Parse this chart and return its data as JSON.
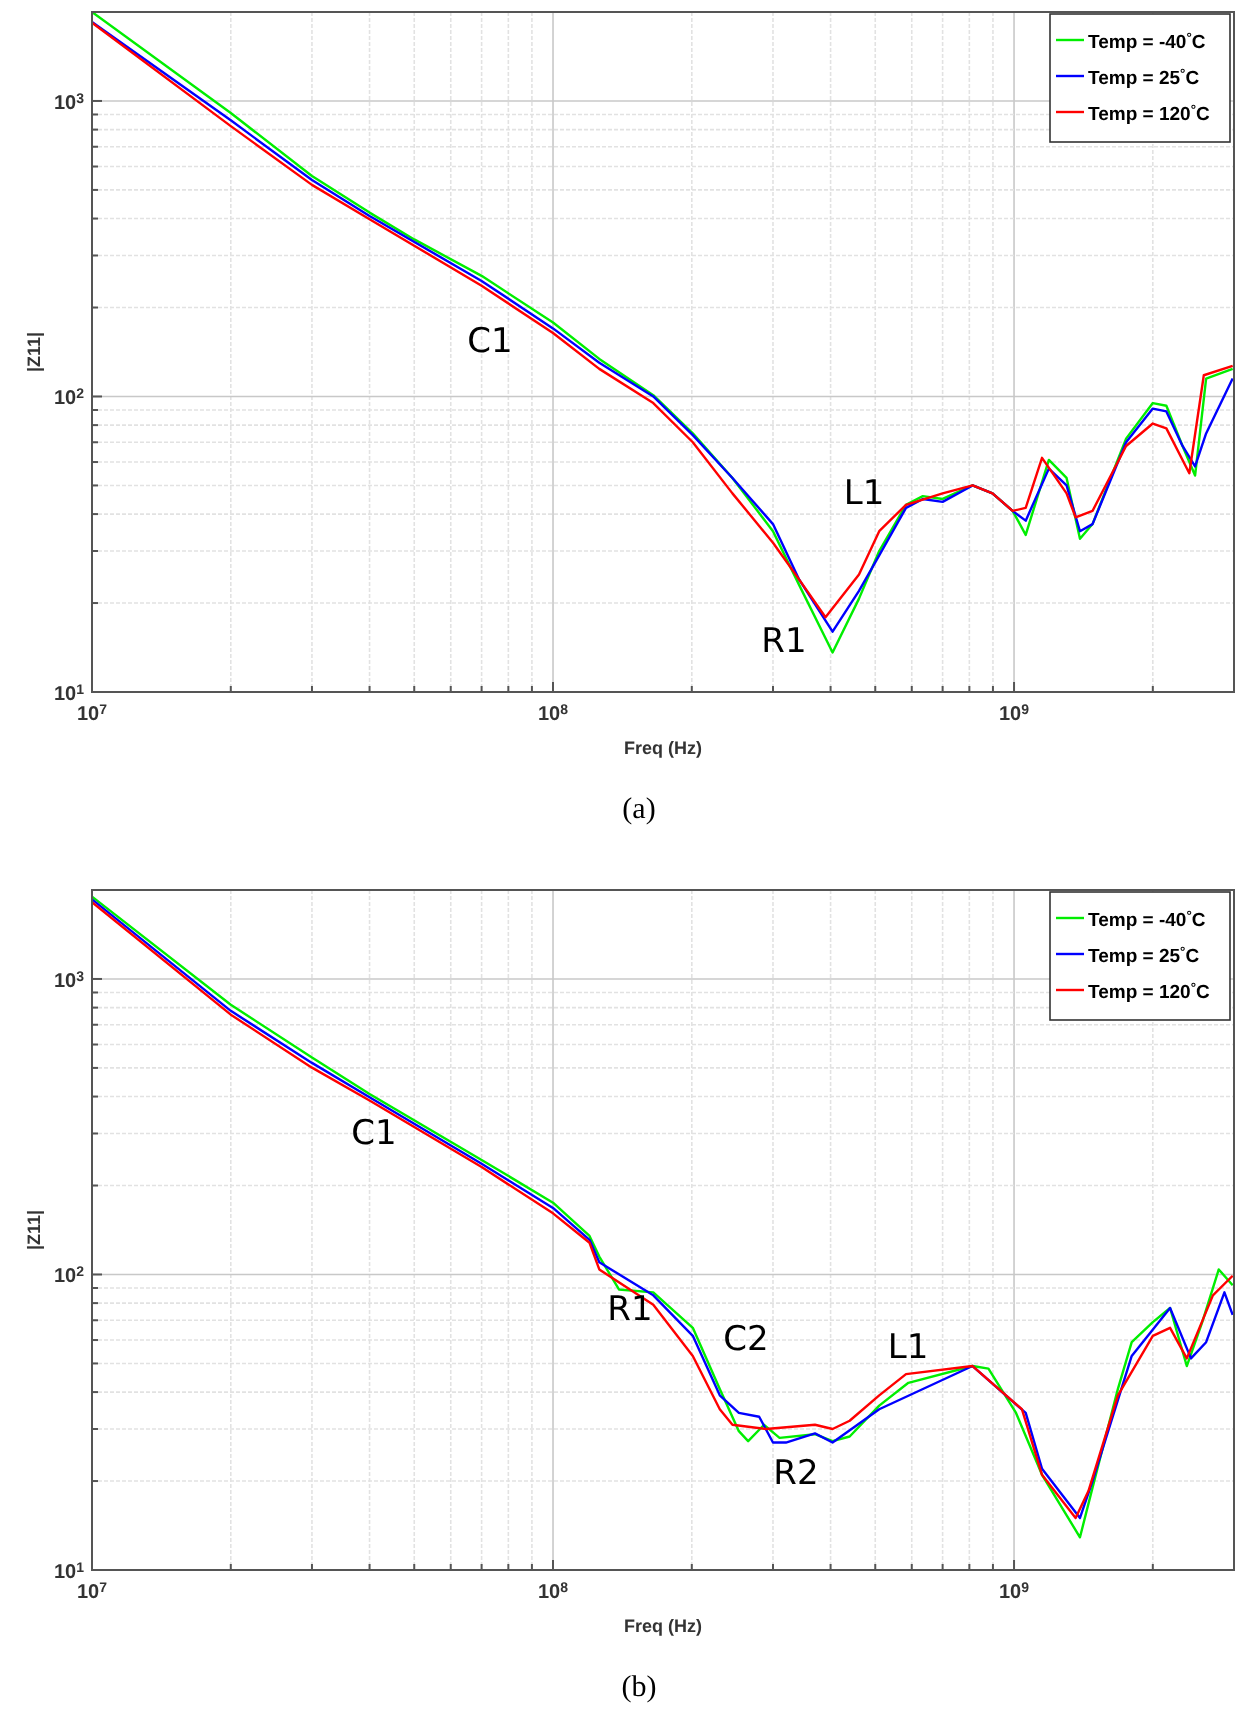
{
  "chart_data": [
    {
      "type": "line",
      "title": "(a)",
      "xlabel": "Freq (Hz)",
      "ylabel": "|Z11|",
      "log": "xy",
      "grid": true,
      "legend": "top right",
      "xlim": [
        10000000,
        3000000000
      ],
      "ylim": [
        10,
        2000
      ],
      "xticks": [
        {
          "value": 10000000,
          "label": "10$^{7}$"
        },
        {
          "value": 20000000,
          "label": null
        },
        {
          "value": 30000000,
          "label": null
        },
        {
          "value": 40000000,
          "label": null
        },
        {
          "value": 50000000,
          "label": null
        },
        {
          "value": 60000000,
          "label": null
        },
        {
          "value": 70000000,
          "label": null
        },
        {
          "value": 80000000,
          "label": null
        },
        {
          "value": 90000000,
          "label": null
        },
        {
          "value": 100000000,
          "label": "10$^{8}$"
        },
        {
          "value": 200000000,
          "label": null
        },
        {
          "value": 300000000,
          "label": null
        },
        {
          "value": 400000000,
          "label": null
        },
        {
          "value": 500000000,
          "label": null
        },
        {
          "value": 600000000,
          "label": null
        },
        {
          "value": 700000000,
          "label": null
        },
        {
          "value": 800000000,
          "label": null
        },
        {
          "value": 900000000,
          "label": null
        },
        {
          "value": 1000000000,
          "label": "10$^{9}$"
        },
        {
          "value": 2000000000,
          "label": null
        }
      ],
      "yticks": [
        {
          "value": 10,
          "label": "10$^{1}$"
        },
        {
          "value": 20,
          "label": null
        },
        {
          "value": 30,
          "label": null
        },
        {
          "value": 40,
          "label": null
        },
        {
          "value": 50,
          "label": null
        },
        {
          "value": 60,
          "label": null
        },
        {
          "value": 70,
          "label": null
        },
        {
          "value": 80,
          "label": null
        },
        {
          "value": 90,
          "label": null
        },
        {
          "value": 100,
          "label": "10$^{2}$"
        },
        {
          "value": 200,
          "label": null
        },
        {
          "value": 300,
          "label": null
        },
        {
          "value": 400,
          "label": null
        },
        {
          "value": 500,
          "label": null
        },
        {
          "value": 600,
          "label": null
        },
        {
          "value": 700,
          "label": null
        },
        {
          "value": 800,
          "label": null
        },
        {
          "value": 900,
          "label": null
        },
        {
          "value": 1000,
          "label": "10$^{3}$"
        }
      ],
      "annotations": [
        "C1",
        "L1",
        "R1"
      ],
      "series": [
        {
          "name": "Temp = -40$^{°}$C",
          "color": "#00ee00",
          "x": [
            10000000,
            20000000,
            30000000,
            40000000,
            50000000,
            70000000,
            100000000,
            126000000,
            165000000,
            201000000,
            245000000,
            300000000,
            342000000,
            404000000,
            461000000,
            510000000,
            583000000,
            634000000,
            700000000,
            813000000,
            898000000,
            993000000,
            1060000000,
            1190000000,
            1300000000,
            1390000000,
            1480000000,
            1750000000,
            2000000000,
            2140000000,
            2320000000,
            2470000000,
            2610000000,
            2980000000
          ],
          "values": [
            2000,
            910,
            557,
            419,
            340,
            256,
            178,
            134,
            101,
            75,
            53,
            35,
            23,
            13.6,
            20.7,
            30,
            43,
            46,
            45,
            50,
            47,
            41,
            34,
            61,
            53,
            33,
            37,
            72,
            95,
            93,
            68,
            54,
            115,
            124
          ]
        },
        {
          "name": "Temp = 25$^{°}$C",
          "color": "#0000ff",
          "x": [
            10000000,
            20000000,
            30000000,
            40000000,
            70000000,
            100000000,
            126000000,
            165000000,
            201000000,
            245000000,
            300000000,
            342000000,
            404000000,
            461000000,
            510000000,
            583000000,
            634000000,
            700000000,
            813000000,
            898000000,
            993000000,
            1060000000,
            1190000000,
            1300000000,
            1390000000,
            1480000000,
            1750000000,
            2000000000,
            2140000000,
            2320000000,
            2470000000,
            2610000000,
            2980000000
          ],
          "values": [
            1850,
            860,
            540,
            408,
            246,
            170,
            130,
            100,
            74,
            53,
            37,
            24,
            16,
            22,
            29,
            42,
            45,
            44,
            50,
            47,
            41,
            38,
            57,
            50,
            35,
            37,
            70,
            91,
            89,
            68,
            58,
            75,
            115
          ]
        },
        {
          "name": "Temp = 120$^{°}$C",
          "color": "#ff0000",
          "x": [
            10000000,
            20000000,
            30000000,
            40000000,
            70000000,
            100000000,
            126000000,
            165000000,
            201000000,
            245000000,
            300000000,
            342000000,
            390000000,
            461000000,
            510000000,
            583000000,
            700000000,
            813000000,
            898000000,
            993000000,
            1060000000,
            1150000000,
            1300000000,
            1360000000,
            1480000000,
            1750000000,
            2000000000,
            2140000000,
            2400000000,
            2580000000,
            2980000000
          ],
          "values": [
            1840,
            822,
            520,
            398,
            237,
            164,
            124,
            95,
            70,
            47,
            32,
            24,
            17.9,
            25,
            35,
            43,
            47,
            50,
            47,
            41,
            42,
            62,
            47,
            39,
            41,
            68,
            81,
            78,
            55,
            118,
            127
          ]
        }
      ]
    },
    {
      "type": "line",
      "title": "(b)",
      "xlabel": "Freq (Hz)",
      "ylabel": "|Z11|",
      "log": "xy",
      "grid": true,
      "legend": "top right",
      "xlim": [
        10000000,
        3000000000
      ],
      "ylim": [
        10,
        2000
      ],
      "xticks": [
        {
          "value": 10000000,
          "label": "10$^{7}$"
        },
        {
          "value": 20000000,
          "label": null
        },
        {
          "value": 30000000,
          "label": null
        },
        {
          "value": 40000000,
          "label": null
        },
        {
          "value": 50000000,
          "label": null
        },
        {
          "value": 60000000,
          "label": null
        },
        {
          "value": 70000000,
          "label": null
        },
        {
          "value": 80000000,
          "label": null
        },
        {
          "value": 90000000,
          "label": null
        },
        {
          "value": 100000000,
          "label": "10$^{8}$"
        },
        {
          "value": 200000000,
          "label": null
        },
        {
          "value": 300000000,
          "label": null
        },
        {
          "value": 400000000,
          "label": null
        },
        {
          "value": 500000000,
          "label": null
        },
        {
          "value": 600000000,
          "label": null
        },
        {
          "value": 700000000,
          "label": null
        },
        {
          "value": 800000000,
          "label": null
        },
        {
          "value": 900000000,
          "label": null
        },
        {
          "value": 1000000000,
          "label": "10$^{9}$"
        },
        {
          "value": 2000000000,
          "label": null
        }
      ],
      "yticks": [
        {
          "value": 10,
          "label": "10$^{1}$"
        },
        {
          "value": 20,
          "label": null
        },
        {
          "value": 30,
          "label": null
        },
        {
          "value": 40,
          "label": null
        },
        {
          "value": 50,
          "label": null
        },
        {
          "value": 60,
          "label": null
        },
        {
          "value": 70,
          "label": null
        },
        {
          "value": 80,
          "label": null
        },
        {
          "value": 90,
          "label": null
        },
        {
          "value": 100,
          "label": "10$^{2}$"
        },
        {
          "value": 200,
          "label": null
        },
        {
          "value": 300,
          "label": null
        },
        {
          "value": 400,
          "label": null
        },
        {
          "value": 500,
          "label": null
        },
        {
          "value": 600,
          "label": null
        },
        {
          "value": 700,
          "label": null
        },
        {
          "value": 800,
          "label": null
        },
        {
          "value": 900,
          "label": null
        },
        {
          "value": 1000,
          "label": "10$^{3}$"
        }
      ],
      "annotations": [
        "C1",
        "R1",
        "C2",
        "L1",
        "R2"
      ],
      "series": [
        {
          "name": "Temp = -40$^{°}$C",
          "color": "#00ee00",
          "x": [
            10000000,
            20000000,
            30000000,
            40000000,
            70000000,
            100000000,
            120000000,
            126000000,
            139000000,
            165000000,
            201000000,
            230000000,
            253000000,
            265000000,
            287000000,
            310000000,
            370000000,
            404000000,
            440000000,
            510000000,
            590000000,
            813000000,
            880000000,
            1010000000,
            1150000000,
            1390000000,
            1480000000,
            1680000000,
            1800000000,
            2000000000,
            2180000000,
            2370000000,
            2560000000,
            2780000000,
            2980000000
          ],
          "values": [
            1900,
            818,
            542,
            408,
            244,
            175,
            135,
            115,
            89,
            87,
            66,
            41,
            29.5,
            27.3,
            31,
            28,
            28.8,
            27.3,
            28.3,
            36,
            43,
            49,
            48,
            34,
            21,
            12.9,
            19,
            41,
            59,
            69,
            77,
            49,
            69,
            104,
            92
          ]
        },
        {
          "name": "Temp = 25$^{°}$C",
          "color": "#0000ff",
          "x": [
            10000000,
            20000000,
            30000000,
            40000000,
            70000000,
            100000000,
            120000000,
            126000000,
            165000000,
            201000000,
            230000000,
            253000000,
            280000000,
            300000000,
            320000000,
            370000000,
            404000000,
            510000000,
            813000000,
            1060000000,
            1150000000,
            1390000000,
            1480000000,
            1800000000,
            2180000000,
            2420000000,
            2610000000,
            2860000000,
            2980000000
          ],
          "values": [
            1860,
            780,
            520,
            398,
            237,
            168,
            131,
            110,
            85,
            62,
            39,
            34,
            33,
            27,
            27,
            29,
            27,
            35,
            49,
            34,
            22,
            15,
            20,
            53,
            77,
            52,
            59,
            87,
            73
          ]
        },
        {
          "name": "Temp = 120$^{°}$C",
          "color": "#ff0000",
          "x": [
            10000000,
            20000000,
            30000000,
            40000000,
            70000000,
            100000000,
            120000000,
            126000000,
            165000000,
            201000000,
            230000000,
            245000000,
            290000000,
            370000000,
            404000000,
            440000000,
            510000000,
            583000000,
            813000000,
            1040000000,
            1150000000,
            1360000000,
            1450000000,
            1680000000,
            2000000000,
            2180000000,
            2370000000,
            2700000000,
            2980000000
          ],
          "values": [
            1820,
            757,
            501,
            388,
            231,
            161,
            128,
            104,
            79,
            53,
            35,
            31,
            30,
            31,
            30,
            32,
            39,
            46,
            49,
            35,
            21,
            15,
            18.5,
            39,
            62,
            66,
            52,
            85,
            99
          ]
        }
      ]
    }
  ]
}
